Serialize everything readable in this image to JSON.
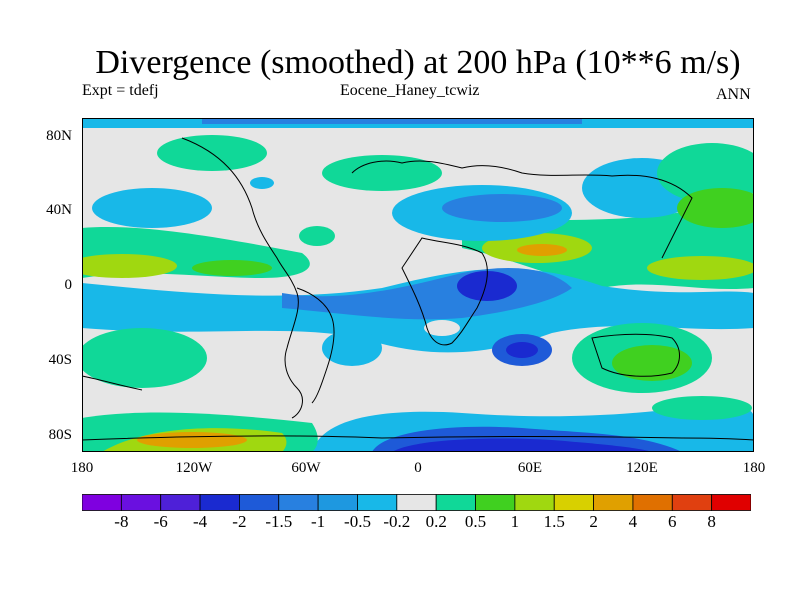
{
  "title": "Divergence (smoothed) at 200 hPa (10**6 m/s)",
  "left_label": "Expt = tdefj",
  "center_label": "Eocene_Haney_tcwiz",
  "right_label": "ANN",
  "lat_labels": [
    "80N",
    "40N",
    "0",
    "40S",
    "80S"
  ],
  "lon_labels": [
    "180",
    "120W",
    "60W",
    "0",
    "60E",
    "120E",
    "180"
  ],
  "colorbar": {
    "colors": [
      "#7f00e0",
      "#6a10e0",
      "#4e20d8",
      "#1a2ad0",
      "#1e5ad8",
      "#2880e0",
      "#1e98e0",
      "#18b8e8",
      "#e6e6e6",
      "#10d898",
      "#40d020",
      "#a0d810",
      "#d8d000",
      "#e0a000",
      "#e07000",
      "#e04010",
      "#e00000"
    ],
    "labels": [
      "-8",
      "-6",
      "-4",
      "-2",
      "-1.5",
      "-1",
      "-0.5",
      "-0.2",
      "0.2",
      "0.5",
      "1",
      "1.5",
      "2",
      "4",
      "6",
      "8"
    ]
  },
  "colors": {
    "grey": "#e6e6e6",
    "lightblue": "#18b8e8",
    "blue": "#2880e0",
    "deepblue": "#1a2ad0",
    "green": "#10d898",
    "lime": "#40d020",
    "yellow": "#a0d810",
    "orange": "#e0a000"
  }
}
